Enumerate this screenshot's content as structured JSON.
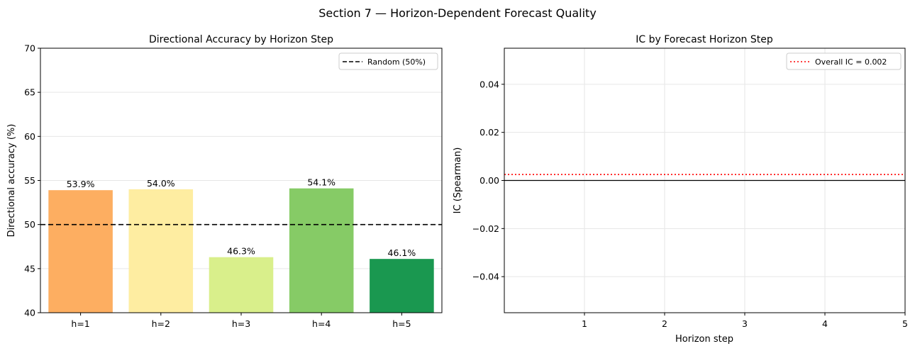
{
  "figure": {
    "suptitle": "Section 7 — Horizon-Dependent Forecast Quality"
  },
  "chart_data": [
    {
      "type": "bar",
      "title": "Directional Accuracy by Horizon Step",
      "xlabel": "",
      "ylabel": "Directional accuracy (%)",
      "categories": [
        "h=1",
        "h=2",
        "h=3",
        "h=4",
        "h=5"
      ],
      "values": [
        53.9,
        54.0,
        46.3,
        54.1,
        46.1
      ],
      "value_labels": [
        "53.9%",
        "54.0%",
        "46.3%",
        "54.1%",
        "46.1%"
      ],
      "colors": [
        "#fdae61",
        "#feeda1",
        "#d9ef8b",
        "#86cb66",
        "#1a9850"
      ],
      "ylim": [
        40,
        70
      ],
      "yticks": [
        40,
        45,
        50,
        55,
        60,
        65,
        70
      ],
      "reference_line": {
        "y": 50,
        "style": "dashed",
        "color": "#000000",
        "label": "Random (50%)"
      },
      "legend": {
        "position": "top-right",
        "entries": [
          "Random (50%)"
        ]
      },
      "grid": "y"
    },
    {
      "type": "line",
      "title": "IC by Forecast Horizon Step",
      "xlabel": "Horizon step",
      "ylabel": "IC (Spearman)",
      "x": [
        1,
        2,
        3,
        4,
        5
      ],
      "series": [],
      "xlim": [
        0,
        5
      ],
      "ylim": [
        -0.055,
        0.055
      ],
      "xticks": [
        1,
        2,
        3,
        4,
        5
      ],
      "yticks": [
        -0.04,
        -0.02,
        0.0,
        0.02,
        0.04
      ],
      "ytick_labels": [
        "−0.04",
        "−0.02",
        "0.00",
        "0.02",
        "0.04"
      ],
      "reference_lines": [
        {
          "y": 0.0025,
          "style": "dotted",
          "color": "#ff0000",
          "label": "Overall IC = 0.002"
        },
        {
          "y": 0,
          "style": "solid",
          "color": "#000000"
        }
      ],
      "legend": {
        "position": "top-right",
        "entries": [
          "Overall IC = 0.002"
        ]
      },
      "grid": "both"
    }
  ]
}
